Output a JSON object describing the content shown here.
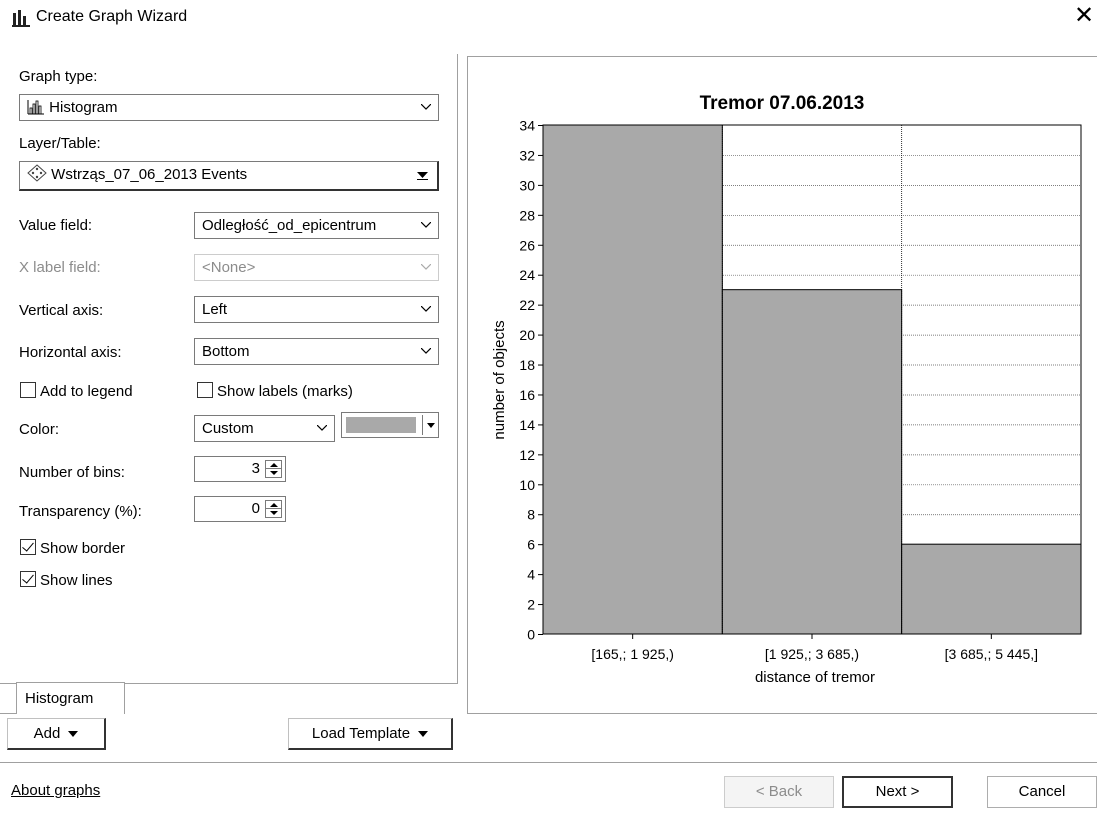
{
  "window": {
    "title": "Create Graph Wizard",
    "icon": "graph-wizard-icon"
  },
  "form": {
    "graph_type_label": "Graph type:",
    "graph_type_value": "Histogram",
    "layer_label": "Layer/Table:",
    "layer_value": "Wstrząs_07_06_2013 Events",
    "value_field_label": "Value field:",
    "value_field_value": "Odległość_od_epicentrum",
    "x_label_field_label": "X label field:",
    "x_label_field_value": "<None>",
    "vertical_axis_label": "Vertical axis:",
    "vertical_axis_value": "Left",
    "horizontal_axis_label": "Horizontal axis:",
    "horizontal_axis_value": "Bottom",
    "add_to_legend_label": "Add to legend",
    "add_to_legend_checked": false,
    "show_labels_label": "Show labels (marks)",
    "show_labels_checked": false,
    "color_label": "Color:",
    "color_mode_value": "Custom",
    "color_swatch": "#a9a9a9",
    "bins_label": "Number of bins:",
    "bins_value": "3",
    "transparency_label": "Transparency (%):",
    "transparency_value": "0",
    "show_border_label": "Show border",
    "show_border_checked": true,
    "show_lines_label": "Show lines",
    "show_lines_checked": true
  },
  "tabs": {
    "active": "Histogram"
  },
  "buttons": {
    "add": "Add",
    "load_template": "Load Template",
    "back": "< Back",
    "next": "Next >",
    "cancel": "Cancel"
  },
  "footer": {
    "about_link": "About graphs"
  },
  "chart_data": {
    "type": "bar",
    "title": "Tremor 07.06.2013",
    "xlabel": "distance of tremor",
    "ylabel": "number of objects",
    "categories": [
      "[165,; 1 925,)",
      "[1 925,; 3 685,)",
      "[3 685,; 5 445,]"
    ],
    "values": [
      34,
      23,
      6
    ],
    "ylim": [
      0,
      34
    ],
    "yticks": [
      0,
      2,
      4,
      6,
      8,
      10,
      12,
      14,
      16,
      18,
      20,
      22,
      24,
      26,
      28,
      30,
      32,
      34
    ],
    "bar_color": "#a9a9a9",
    "grid": true
  }
}
